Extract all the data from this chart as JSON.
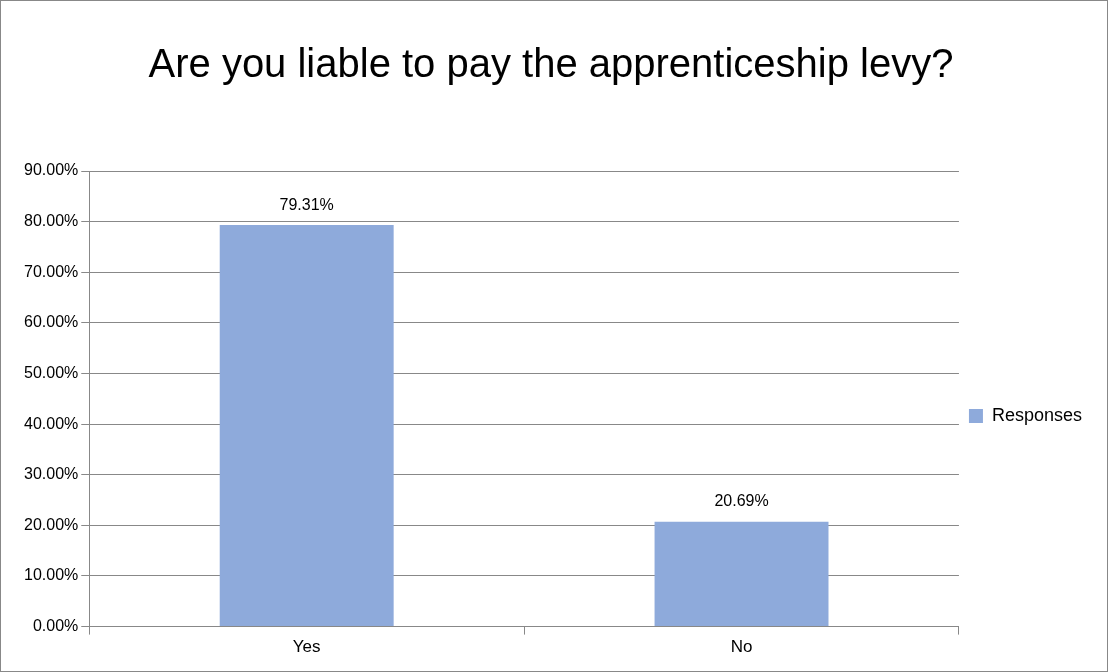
{
  "chart_data": {
    "type": "bar",
    "title": "Are you liable to pay the apprenticeship levy?",
    "categories": [
      "Yes",
      "No"
    ],
    "series": [
      {
        "name": "Responses",
        "color": "#8eaadb",
        "values": [
          79.31,
          20.69
        ],
        "value_labels": [
          "79.31%",
          "20.69%"
        ]
      }
    ],
    "ylim": [
      0,
      90
    ],
    "yticks": [
      {
        "value": 0,
        "label": "0.00%"
      },
      {
        "value": 10,
        "label": "10.00%"
      },
      {
        "value": 20,
        "label": "20.00%"
      },
      {
        "value": 30,
        "label": "30.00%"
      },
      {
        "value": 40,
        "label": "40.00%"
      },
      {
        "value": 50,
        "label": "50.00%"
      },
      {
        "value": 60,
        "label": "60.00%"
      },
      {
        "value": 70,
        "label": "70.00%"
      },
      {
        "value": 80,
        "label": "80.00%"
      },
      {
        "value": 90,
        "label": "90.00%"
      }
    ],
    "grid": "y",
    "legend": "right"
  }
}
